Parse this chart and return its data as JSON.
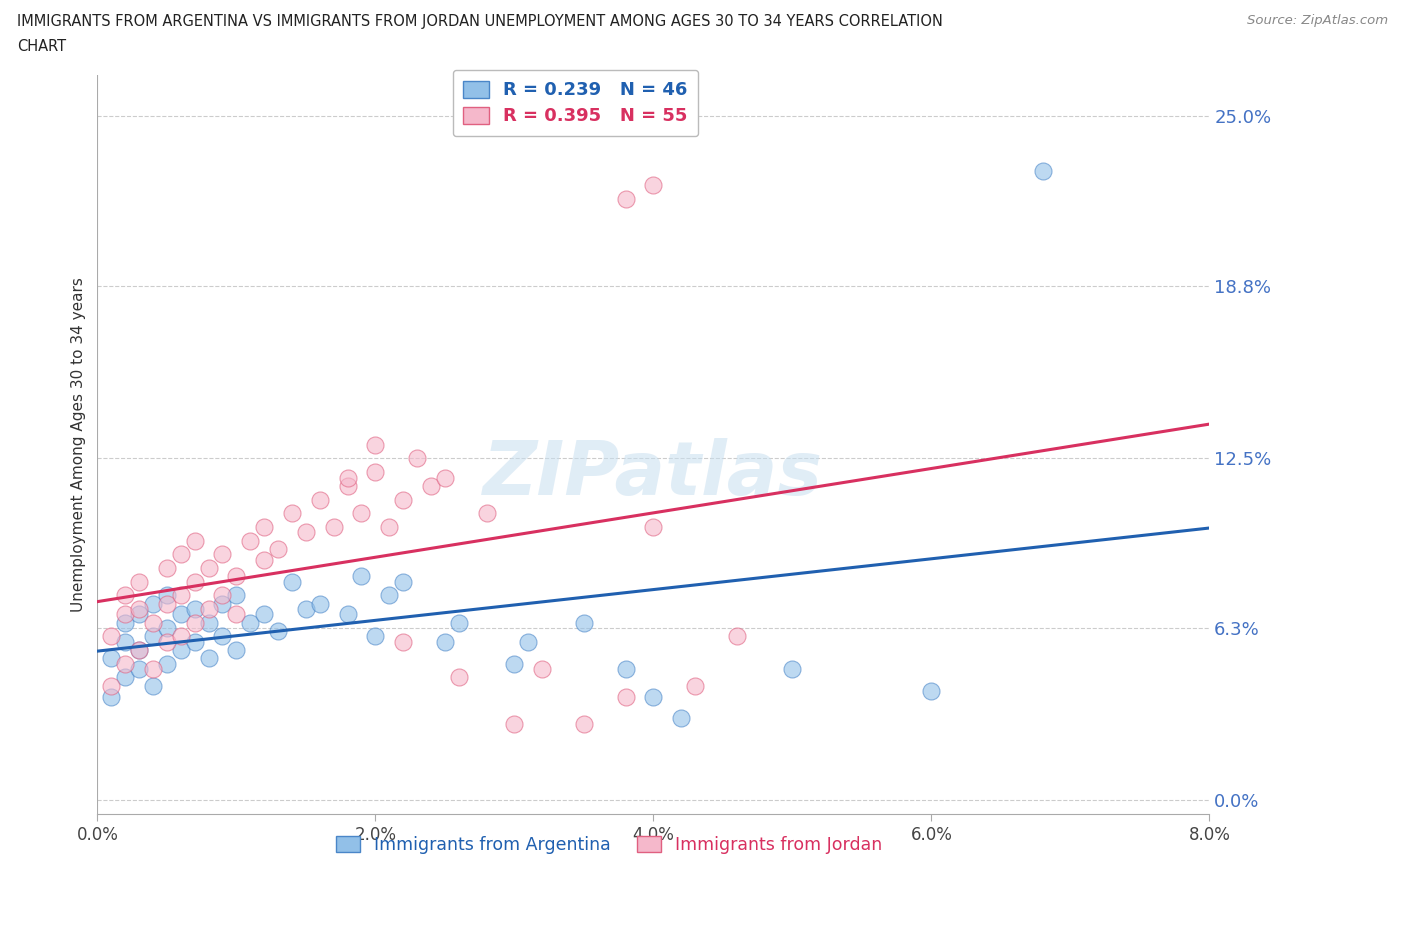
{
  "title_line1": "IMMIGRANTS FROM ARGENTINA VS IMMIGRANTS FROM JORDAN UNEMPLOYMENT AMONG AGES 30 TO 34 YEARS CORRELATION",
  "title_line2": "CHART",
  "source_text": "Source: ZipAtlas.com",
  "ylabel": "Unemployment Among Ages 30 to 34 years",
  "xlabel_ticks": [
    "0.0%",
    "2.0%",
    "4.0%",
    "6.0%",
    "8.0%"
  ],
  "xtick_vals": [
    0.0,
    0.02,
    0.04,
    0.06,
    0.08
  ],
  "ylabel_ticks": [
    "0.0%",
    "6.3%",
    "12.5%",
    "18.8%",
    "25.0%"
  ],
  "ytick_vals": [
    0.0,
    0.063,
    0.125,
    0.188,
    0.25
  ],
  "xlim": [
    0.0,
    0.08
  ],
  "ylim": [
    -0.005,
    0.265
  ],
  "argentina_color": "#92c0e8",
  "jordan_color": "#f5b8cb",
  "argentina_edge_color": "#4a86c8",
  "jordan_edge_color": "#e06080",
  "argentina_line_color": "#2060b0",
  "jordan_line_color": "#d83060",
  "argentina_R": 0.239,
  "argentina_N": 46,
  "jordan_R": 0.395,
  "jordan_N": 55,
  "legend_argentina": "Immigrants from Argentina",
  "legend_jordan": "Immigrants from Jordan",
  "argentina_scatter_x": [
    0.001,
    0.001,
    0.002,
    0.002,
    0.002,
    0.003,
    0.003,
    0.003,
    0.004,
    0.004,
    0.004,
    0.005,
    0.005,
    0.005,
    0.006,
    0.006,
    0.007,
    0.007,
    0.008,
    0.008,
    0.009,
    0.009,
    0.01,
    0.01,
    0.011,
    0.012,
    0.013,
    0.014,
    0.015,
    0.016,
    0.018,
    0.019,
    0.02,
    0.021,
    0.022,
    0.025,
    0.026,
    0.03,
    0.031,
    0.035,
    0.038,
    0.04,
    0.042,
    0.05,
    0.06,
    0.068
  ],
  "argentina_scatter_y": [
    0.038,
    0.052,
    0.045,
    0.058,
    0.065,
    0.048,
    0.055,
    0.068,
    0.042,
    0.06,
    0.072,
    0.05,
    0.063,
    0.075,
    0.055,
    0.068,
    0.058,
    0.07,
    0.052,
    0.065,
    0.06,
    0.072,
    0.055,
    0.075,
    0.065,
    0.068,
    0.062,
    0.08,
    0.07,
    0.072,
    0.068,
    0.082,
    0.06,
    0.075,
    0.08,
    0.058,
    0.065,
    0.05,
    0.058,
    0.065,
    0.048,
    0.038,
    0.03,
    0.048,
    0.04,
    0.23
  ],
  "jordan_scatter_x": [
    0.001,
    0.001,
    0.002,
    0.002,
    0.002,
    0.003,
    0.003,
    0.003,
    0.004,
    0.004,
    0.005,
    0.005,
    0.005,
    0.006,
    0.006,
    0.006,
    0.007,
    0.007,
    0.007,
    0.008,
    0.008,
    0.009,
    0.009,
    0.01,
    0.01,
    0.011,
    0.012,
    0.012,
    0.013,
    0.014,
    0.015,
    0.016,
    0.017,
    0.018,
    0.019,
    0.02,
    0.02,
    0.021,
    0.022,
    0.023,
    0.024,
    0.025,
    0.026,
    0.028,
    0.03,
    0.032,
    0.035,
    0.038,
    0.04,
    0.043,
    0.046,
    0.04,
    0.038,
    0.022,
    0.018
  ],
  "jordan_scatter_y": [
    0.042,
    0.06,
    0.05,
    0.068,
    0.075,
    0.055,
    0.07,
    0.08,
    0.048,
    0.065,
    0.058,
    0.072,
    0.085,
    0.06,
    0.075,
    0.09,
    0.065,
    0.08,
    0.095,
    0.07,
    0.085,
    0.075,
    0.09,
    0.068,
    0.082,
    0.095,
    0.088,
    0.1,
    0.092,
    0.105,
    0.098,
    0.11,
    0.1,
    0.115,
    0.105,
    0.12,
    0.13,
    0.1,
    0.11,
    0.125,
    0.115,
    0.118,
    0.045,
    0.105,
    0.028,
    0.048,
    0.028,
    0.038,
    0.1,
    0.042,
    0.06,
    0.225,
    0.22,
    0.058,
    0.118
  ]
}
